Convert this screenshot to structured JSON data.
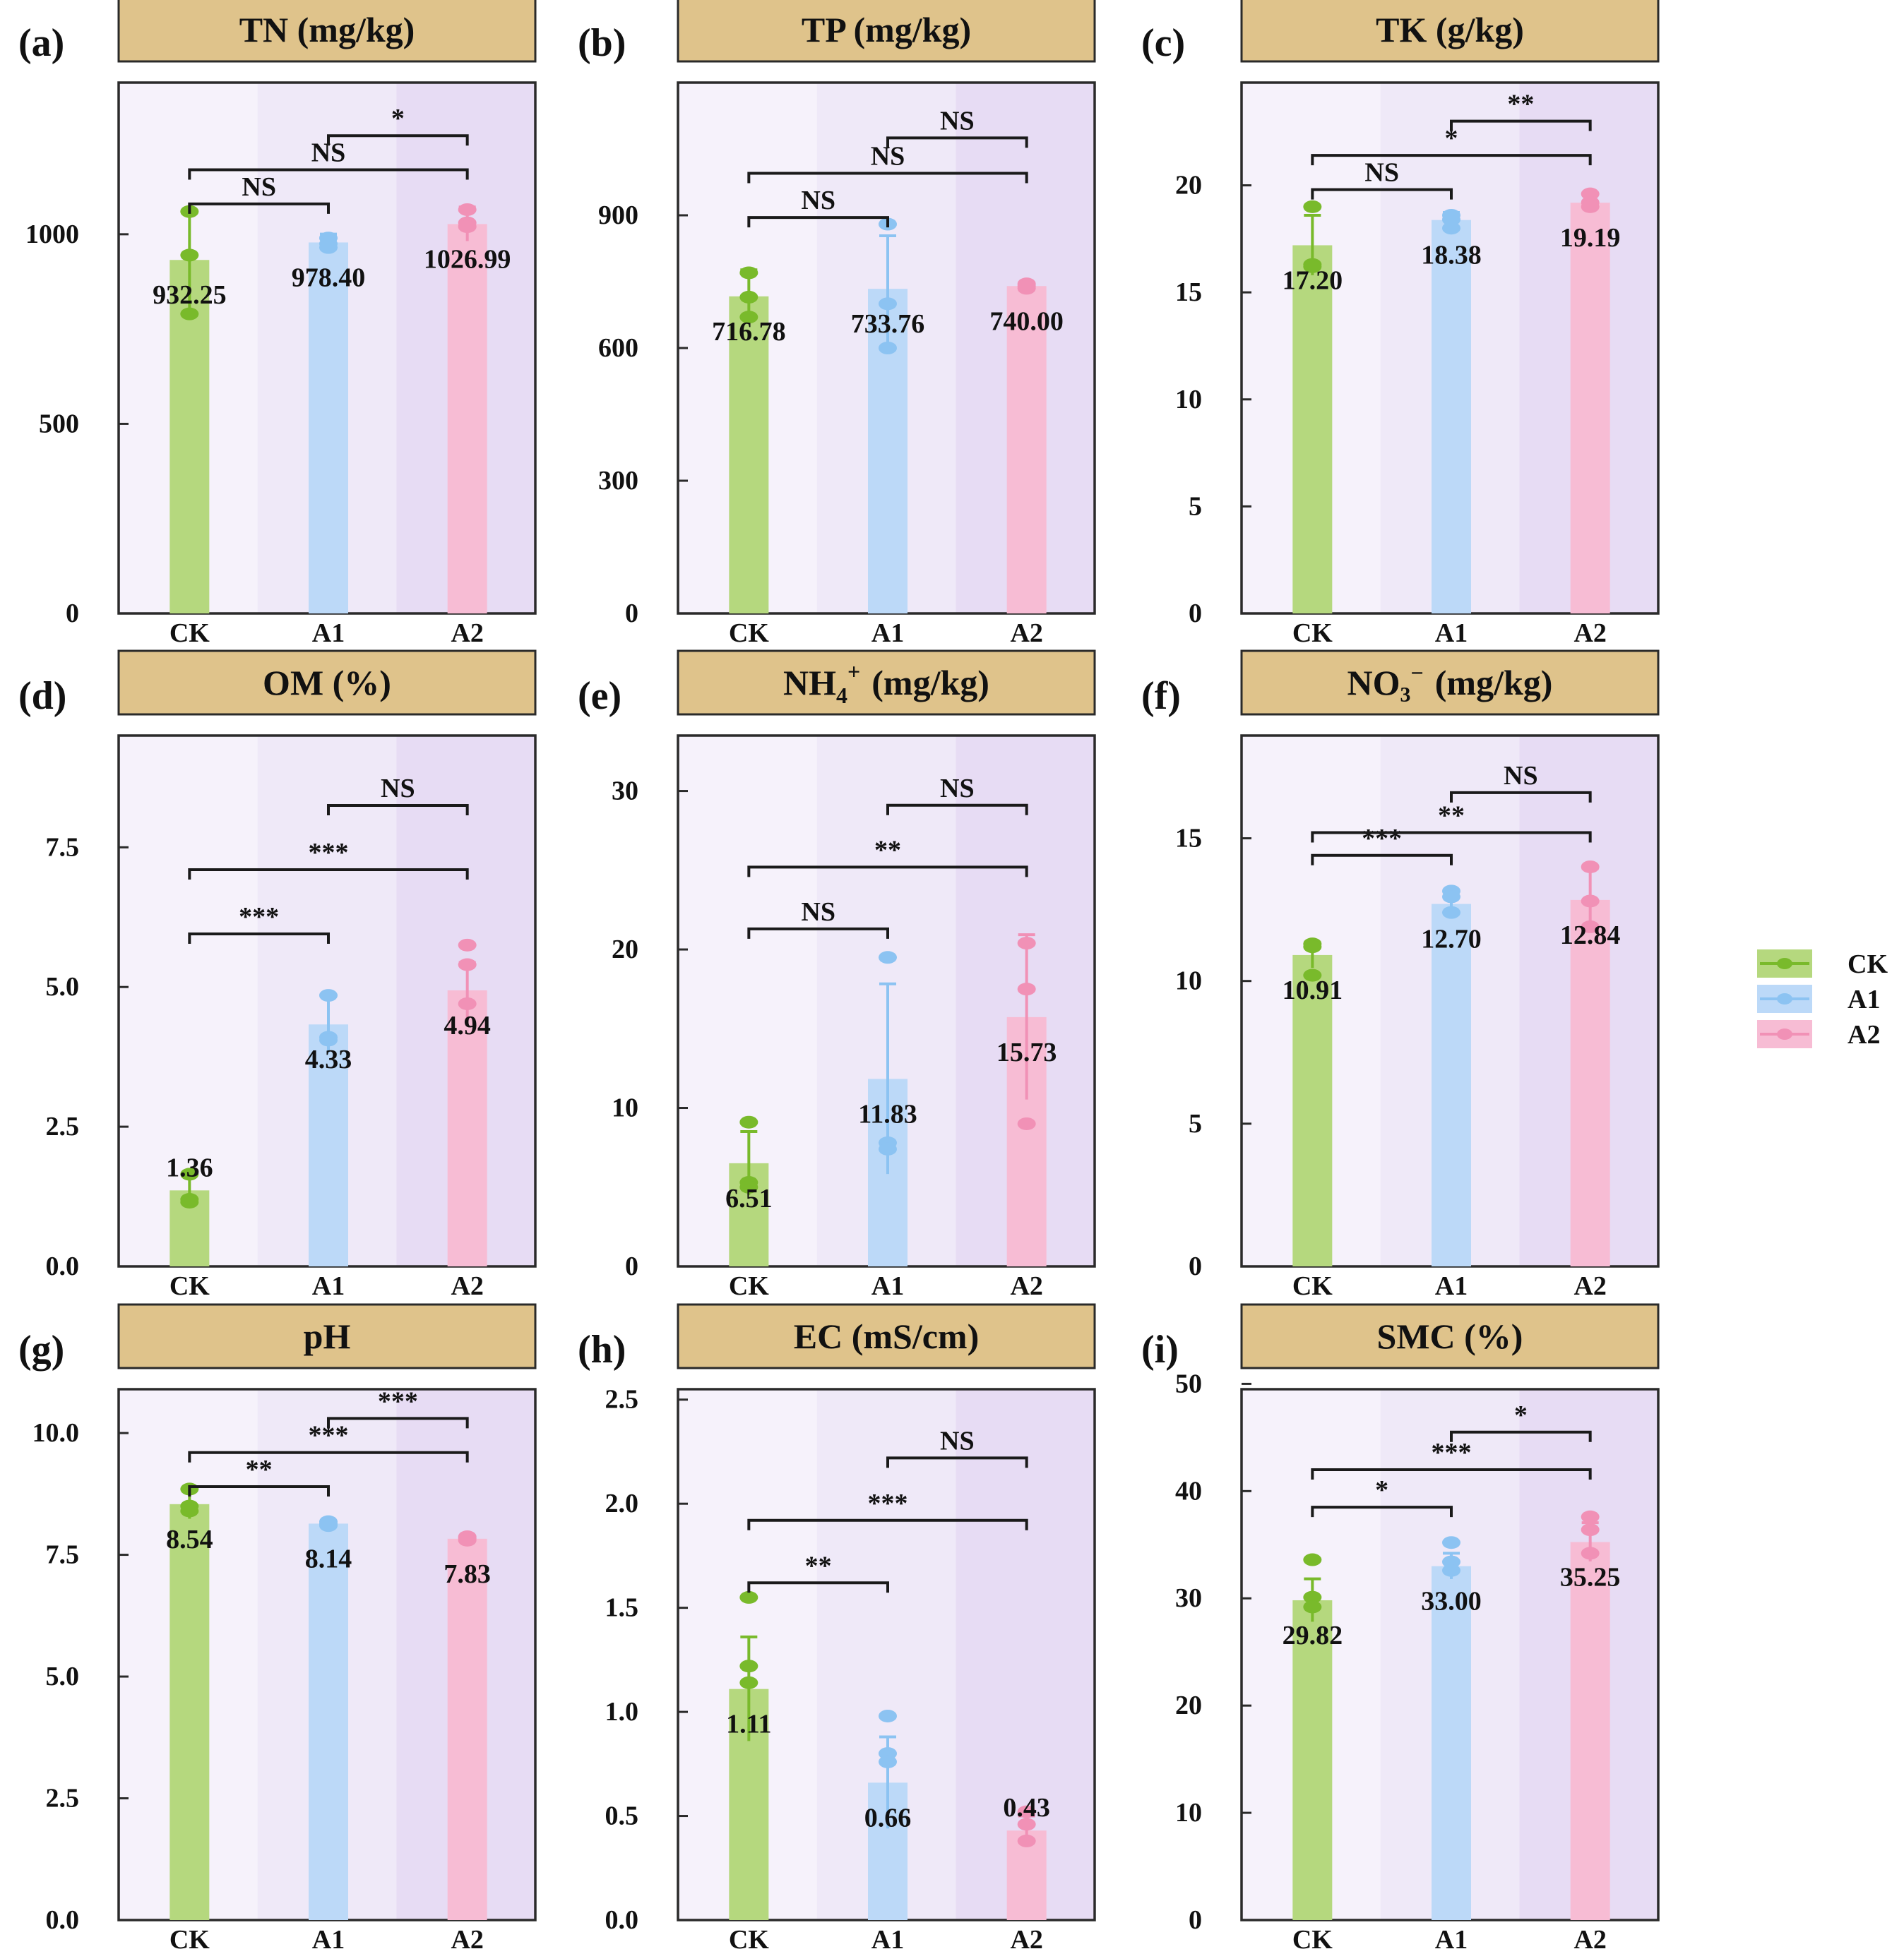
{
  "chart_data": [
    {
      "type": "bar",
      "panel": "(a)",
      "title": "TN (mg/kg)",
      "categories": [
        "CK",
        "A1",
        "A2"
      ],
      "values": [
        932.25,
        978.4,
        1026.99
      ],
      "value_labels": [
        "932.25",
        "978.40",
        "1026.99"
      ],
      "error": [
        130,
        22,
        45
      ],
      "points": [
        [
          1060,
          945,
          790
        ],
        [
          990,
          975,
          965
        ],
        [
          1065,
          1030,
          1020
        ]
      ],
      "ylim": [
        0,
        1400
      ],
      "yticks": [
        0,
        500,
        1000
      ],
      "ytick_labels": [
        "0",
        "500",
        "1000"
      ],
      "comparisons": [
        {
          "from": 0,
          "to": 1,
          "label": "NS",
          "y": 1080
        },
        {
          "from": 0,
          "to": 2,
          "label": "NS",
          "y": 1170
        },
        {
          "from": 1,
          "to": 2,
          "label": "*",
          "y": 1260
        }
      ]
    },
    {
      "type": "bar",
      "panel": "(b)",
      "title": "TP (mg/kg)",
      "categories": [
        "CK",
        "A1",
        "A2"
      ],
      "values": [
        716.78,
        733.76,
        740.0
      ],
      "value_labels": [
        "716.78",
        "733.76",
        "740.00"
      ],
      "error": [
        60,
        120,
        8
      ],
      "points": [
        [
          770,
          715,
          670
        ],
        [
          880,
          700,
          600
        ],
        [
          745,
          740,
          735
        ]
      ],
      "ylim": [
        0,
        1200
      ],
      "yticks": [
        0,
        300,
        600,
        900
      ],
      "ytick_labels": [
        "0",
        "300",
        "600",
        "900"
      ],
      "comparisons": [
        {
          "from": 0,
          "to": 1,
          "label": "NS",
          "y": 895
        },
        {
          "from": 0,
          "to": 2,
          "label": "NS",
          "y": 995
        },
        {
          "from": 1,
          "to": 2,
          "label": "NS",
          "y": 1075
        }
      ]
    },
    {
      "type": "bar",
      "panel": "(c)",
      "title": "TK (g/kg)",
      "categories": [
        "CK",
        "A1",
        "A2"
      ],
      "values": [
        17.2,
        18.38,
        19.19
      ],
      "value_labels": [
        "17.20",
        "18.38",
        "19.19"
      ],
      "error": [
        1.4,
        0.35,
        0.4
      ],
      "points": [
        [
          19.0,
          16.3,
          16.2
        ],
        [
          18.6,
          18.4,
          18.0
        ],
        [
          19.6,
          19.2,
          19.0
        ]
      ],
      "ylim": [
        0,
        24.8
      ],
      "yticks": [
        0,
        5,
        10,
        15,
        20
      ],
      "ytick_labels": [
        "0",
        "5",
        "10",
        "15",
        "20"
      ],
      "comparisons": [
        {
          "from": 0,
          "to": 1,
          "label": "NS",
          "y": 19.8
        },
        {
          "from": 0,
          "to": 2,
          "label": "*",
          "y": 21.4
        },
        {
          "from": 1,
          "to": 2,
          "label": "**",
          "y": 23.0
        }
      ]
    },
    {
      "type": "bar",
      "panel": "(d)",
      "title": "OM (%)",
      "categories": [
        "CK",
        "A1",
        "A2"
      ],
      "values": [
        1.36,
        4.33,
        4.94
      ],
      "value_labels": [
        "1.36",
        "4.33",
        "4.94"
      ],
      "error": [
        0.3,
        0.5,
        0.5
      ],
      "points": [
        [
          1.65,
          1.2,
          1.15
        ],
        [
          4.85,
          4.1,
          4.05
        ],
        [
          5.75,
          5.4,
          4.7
        ]
      ],
      "ylim": [
        0,
        9.5
      ],
      "yticks": [
        0,
        2.5,
        5.0,
        7.5
      ],
      "ytick_labels": [
        "0.0",
        "2.5",
        "5.0",
        "7.5"
      ],
      "comparisons": [
        {
          "from": 0,
          "to": 1,
          "label": "***",
          "y": 5.95
        },
        {
          "from": 0,
          "to": 2,
          "label": "***",
          "y": 7.1
        },
        {
          "from": 1,
          "to": 2,
          "label": "NS",
          "y": 8.25
        }
      ]
    },
    {
      "type": "bar",
      "panel": "(e)",
      "title": "NH4+ (mg/kg)",
      "title_main": "NH",
      "title_sub": "4",
      "title_sup": "+",
      "title_unit": "(mg/kg)",
      "categories": [
        "CK",
        "A1",
        "A2"
      ],
      "values": [
        6.51,
        11.83,
        15.73
      ],
      "value_labels": [
        "6.51",
        "11.83",
        "15.73"
      ],
      "error": [
        2.0,
        6.0,
        5.2
      ],
      "points": [
        [
          9.1,
          5.3,
          5.0
        ],
        [
          19.5,
          7.8,
          7.4
        ],
        [
          20.4,
          17.5,
          9.0
        ]
      ],
      "ylim": [
        0,
        33.5
      ],
      "yticks": [
        0,
        10,
        20,
        30
      ],
      "ytick_labels": [
        "0",
        "10",
        "20",
        "30"
      ],
      "comparisons": [
        {
          "from": 0,
          "to": 1,
          "label": "NS",
          "y": 21.3
        },
        {
          "from": 0,
          "to": 2,
          "label": "**",
          "y": 25.2
        },
        {
          "from": 1,
          "to": 2,
          "label": "NS",
          "y": 29.1
        }
      ]
    },
    {
      "type": "bar",
      "panel": "(f)",
      "title": "NO3- (mg/kg)",
      "title_main": "NO₃",
      "title_sup": "−",
      "title_unit": "(mg/kg)",
      "categories": [
        "CK",
        "A1",
        "A2"
      ],
      "values": [
        10.91,
        12.7,
        12.84
      ],
      "value_labels": [
        "10.91",
        "12.70",
        "12.84"
      ],
      "error": [
        0.45,
        0.45,
        1.1
      ],
      "points": [
        [
          11.3,
          11.2,
          10.2
        ],
        [
          13.15,
          12.95,
          12.4
        ],
        [
          14.0,
          12.8,
          11.9
        ]
      ],
      "ylim": [
        0,
        18.6
      ],
      "yticks": [
        0,
        5,
        10,
        15
      ],
      "ytick_labels": [
        "0",
        "5",
        "10",
        "15"
      ],
      "comparisons": [
        {
          "from": 0,
          "to": 1,
          "label": "***",
          "y": 14.4
        },
        {
          "from": 0,
          "to": 2,
          "label": "**",
          "y": 15.2
        },
        {
          "from": 1,
          "to": 2,
          "label": "NS",
          "y": 16.6
        }
      ]
    },
    {
      "type": "bar",
      "panel": "(g)",
      "title": "pH",
      "categories": [
        "CK",
        "A1",
        "A2"
      ],
      "values": [
        8.54,
        8.14,
        7.83
      ],
      "value_labels": [
        "8.54",
        "8.14",
        "7.83"
      ],
      "error": [
        0.3,
        0.04,
        0.04
      ],
      "points": [
        [
          8.85,
          8.5,
          8.4
        ],
        [
          8.18,
          8.14,
          8.1
        ],
        [
          7.87,
          7.84,
          7.8
        ]
      ],
      "ylim": [
        0,
        10.9
      ],
      "yticks": [
        0,
        2.5,
        5.0,
        7.5,
        10.0
      ],
      "ytick_labels": [
        "0.0",
        "2.5",
        "5.0",
        "7.5",
        "10.0"
      ],
      "comparisons": [
        {
          "from": 0,
          "to": 1,
          "label": "**",
          "y": 8.9
        },
        {
          "from": 0,
          "to": 2,
          "label": "***",
          "y": 9.6
        },
        {
          "from": 1,
          "to": 2,
          "label": "***",
          "y": 10.3
        }
      ]
    },
    {
      "type": "bar",
      "panel": "(h)",
      "title": "EC (mS/cm)",
      "categories": [
        "CK",
        "A1",
        "A2"
      ],
      "values": [
        1.11,
        0.66,
        0.43
      ],
      "value_labels": [
        "1.11",
        "0.66",
        "0.43"
      ],
      "error": [
        0.25,
        0.22,
        0.07
      ],
      "points": [
        [
          1.55,
          1.22,
          1.14
        ],
        [
          0.98,
          0.8,
          0.76
        ],
        [
          0.52,
          0.46,
          0.38
        ]
      ],
      "ylim": [
        0,
        2.55
      ],
      "yticks": [
        0,
        0.5,
        1.0,
        1.5,
        2.0,
        2.5
      ],
      "ytick_labels": [
        "0.0",
        "0.5",
        "1.0",
        "1.5",
        "2.0",
        "2.5"
      ],
      "comparisons": [
        {
          "from": 0,
          "to": 1,
          "label": "**",
          "y": 1.62
        },
        {
          "from": 0,
          "to": 2,
          "label": "***",
          "y": 1.92
        },
        {
          "from": 1,
          "to": 2,
          "label": "NS",
          "y": 2.22
        }
      ]
    },
    {
      "type": "bar",
      "panel": "(i)",
      "title": "SMC (%)",
      "categories": [
        "CK",
        "A1",
        "A2"
      ],
      "values": [
        29.82,
        33.0,
        35.25
      ],
      "value_labels": [
        "29.82",
        "33.00",
        "35.25"
      ],
      "error": [
        2.0,
        1.2,
        1.8
      ],
      "points": [
        [
          33.6,
          30.1,
          29.2
        ],
        [
          35.2,
          33.4,
          32.6
        ],
        [
          37.6,
          36.4,
          34.2
        ]
      ],
      "ylim": [
        0,
        49.5
      ],
      "yticks": [
        0,
        10,
        20,
        30,
        40,
        50
      ],
      "ytick_labels": [
        "0",
        "10",
        "20",
        "30",
        "40",
        "50"
      ],
      "comparisons": [
        {
          "from": 0,
          "to": 1,
          "label": "*",
          "y": 38.5
        },
        {
          "from": 0,
          "to": 2,
          "label": "***",
          "y": 42.0
        },
        {
          "from": 1,
          "to": 2,
          "label": "*",
          "y": 45.5
        }
      ]
    }
  ],
  "legend": [
    {
      "label": "CK",
      "color": "#b5d87e",
      "point_color": "#79ba2b"
    },
    {
      "label": "A1",
      "color": "#bcd9f8",
      "point_color": "#8cc3f2"
    },
    {
      "label": "A2",
      "color": "#f7bcd4",
      "point_color": "#f191b6"
    }
  ],
  "style": {
    "title_bg": "#dfc38b",
    "band_colors": [
      "#f6f2fb",
      "#efe9f8",
      "#e7dcf4"
    ]
  }
}
